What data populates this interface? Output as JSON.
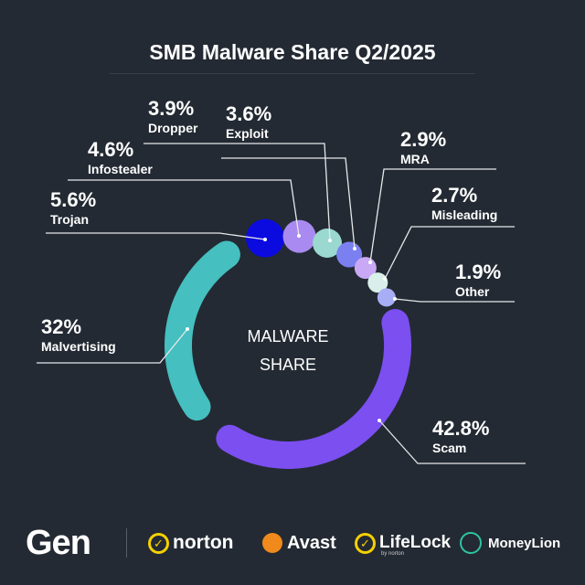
{
  "chart_data": {
    "type": "pie",
    "variant": "donut",
    "title": "SMB Malware Share Q2/2025",
    "center_label": [
      "MALWARE",
      "SHARE"
    ],
    "unit": "%",
    "slices": [
      {
        "name": "Scam",
        "label": "42.8%",
        "value": 42.8,
        "color": "#7b4ff0"
      },
      {
        "name": "Malvertising",
        "label": "32%",
        "value": 32,
        "color": "#45bfbf"
      },
      {
        "name": "Trojan",
        "label": "5.6%",
        "value": 5.6,
        "color": "#0b0be0"
      },
      {
        "name": "Infostealer",
        "label": "4.6%",
        "value": 4.6,
        "color": "#a98af0"
      },
      {
        "name": "Dropper",
        "label": "3.9%",
        "value": 3.9,
        "color": "#9ad8d0"
      },
      {
        "name": "Exploit",
        "label": "3.6%",
        "value": 3.6,
        "color": "#7b80f0"
      },
      {
        "name": "MRA",
        "label": "2.9%",
        "value": 2.9,
        "color": "#c9a8f5"
      },
      {
        "name": "Misleading",
        "label": "2.7%",
        "value": 2.7,
        "color": "#d9f0ea"
      },
      {
        "name": "Other",
        "label": "1.9%",
        "value": 1.9,
        "color": "#a8aef5"
      }
    ]
  },
  "footer": {
    "logos": [
      "Gen",
      "norton",
      "Avast",
      "LifeLock",
      "MoneyLion"
    ],
    "lifelock_sub": "by norton"
  },
  "colors": {
    "background": "#232a33",
    "text": "#ffffff",
    "leader": "#e6e8ea"
  }
}
